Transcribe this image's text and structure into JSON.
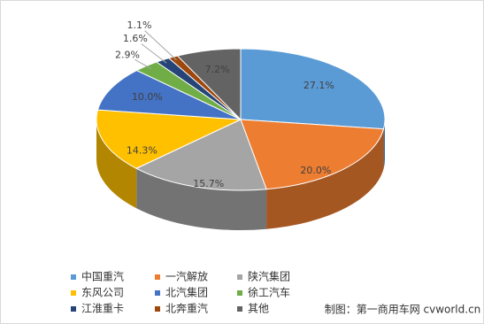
{
  "chart_data": {
    "type": "pie3d",
    "categories": [
      "中国重汽",
      "一汽解放",
      "陕汽集团",
      "东风公司",
      "北汽集团",
      "徐工汽车",
      "江淮重卡",
      "北奔重汽",
      "其他"
    ],
    "values": [
      27.1,
      20.0,
      15.7,
      14.3,
      10.0,
      2.9,
      1.6,
      1.1,
      7.2
    ],
    "value_labels": [
      "27.1%",
      "20.0%",
      "15.7%",
      "14.3%",
      "10.0%",
      "2.9%",
      "1.6%",
      "1.1%",
      "7.2%"
    ],
    "colors": [
      "#5b9bd5",
      "#ed7d31",
      "#a5a5a5",
      "#ffc000",
      "#4472c4",
      "#70ad47",
      "#264478",
      "#9e480e",
      "#636363"
    ],
    "legend": "bottom",
    "note": "制图：第一商用车网 cvworld.cn"
  }
}
